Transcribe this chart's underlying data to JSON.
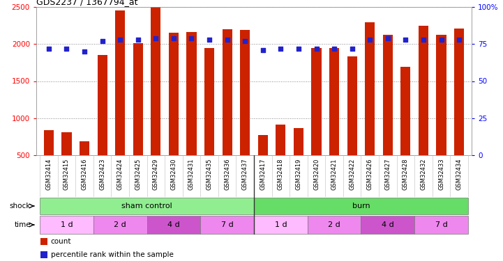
{
  "title": "GDS2237 / 1367794_at",
  "samples": [
    "GSM32414",
    "GSM32415",
    "GSM32416",
    "GSM32423",
    "GSM32424",
    "GSM32425",
    "GSM32429",
    "GSM32430",
    "GSM32431",
    "GSM32435",
    "GSM32436",
    "GSM32437",
    "GSM32417",
    "GSM32418",
    "GSM32419",
    "GSM32420",
    "GSM32421",
    "GSM32422",
    "GSM32426",
    "GSM32427",
    "GSM32428",
    "GSM32432",
    "GSM32433",
    "GSM32434"
  ],
  "counts": [
    840,
    810,
    690,
    1850,
    2450,
    2010,
    2500,
    2150,
    2160,
    1950,
    2200,
    2190,
    770,
    910,
    870,
    1950,
    1950,
    1830,
    2290,
    2120,
    1690,
    2250,
    2120,
    2210
  ],
  "percentiles": [
    72,
    72,
    70,
    77,
    78,
    78,
    79,
    79,
    79,
    78,
    78,
    77,
    71,
    72,
    72,
    72,
    72,
    72,
    78,
    79,
    78,
    78,
    78,
    78
  ],
  "shock_groups": [
    {
      "label": "sham control",
      "start": 0,
      "end": 12,
      "color": "#90EE90"
    },
    {
      "label": "burn",
      "start": 12,
      "end": 24,
      "color": "#66DD66"
    }
  ],
  "time_groups": [
    {
      "label": "1 d",
      "start": 0,
      "end": 3,
      "color": "#FFBBFF"
    },
    {
      "label": "2 d",
      "start": 3,
      "end": 6,
      "color": "#EE88EE"
    },
    {
      "label": "4 d",
      "start": 6,
      "end": 9,
      "color": "#DD66DD"
    },
    {
      "label": "7 d",
      "start": 9,
      "end": 12,
      "color": "#EE88EE"
    },
    {
      "label": "1 d",
      "start": 12,
      "end": 15,
      "color": "#FFBBFF"
    },
    {
      "label": "2 d",
      "start": 15,
      "end": 18,
      "color": "#EE88EE"
    },
    {
      "label": "4 d",
      "start": 18,
      "end": 21,
      "color": "#DD66DD"
    },
    {
      "label": "7 d",
      "start": 21,
      "end": 24,
      "color": "#EE88EE"
    }
  ],
  "ylim_left": [
    500,
    2500
  ],
  "ylim_right": [
    0,
    100
  ],
  "yticks_left": [
    500,
    1000,
    1500,
    2000,
    2500
  ],
  "yticks_right": [
    0,
    25,
    50,
    75,
    100
  ],
  "bar_color": "#CC2200",
  "dot_color": "#2222CC",
  "bg_color": "#FFFFFF"
}
